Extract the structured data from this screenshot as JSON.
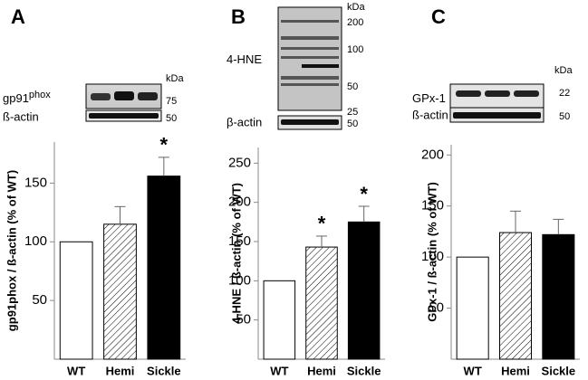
{
  "chart_data": [
    {
      "type": "bar",
      "panel": "A",
      "ylabel": "gp91phox / ß-actin (% of WT)",
      "categories": [
        "WT",
        "Hemi",
        "Sickle"
      ],
      "values": [
        100,
        115,
        156
      ],
      "errors": [
        0,
        15,
        16
      ],
      "fills": [
        "#ffffff",
        "#ffffff",
        "#000000"
      ],
      "hatch": [
        false,
        true,
        false
      ],
      "significance": [
        null,
        null,
        "*"
      ],
      "ylim": [
        0,
        185
      ],
      "yticks": [
        50,
        100,
        150
      ],
      "blot": {
        "unit": "kDa",
        "protein": "gp91",
        "protein_sup": "phox",
        "loading": "ß-actin",
        "markers": [
          "75",
          "50"
        ]
      }
    },
    {
      "type": "bar",
      "panel": "B",
      "ylabel": "4-HNE / ß-actin (% of WT)",
      "categories": [
        "WT",
        "Hemi",
        "Sickle"
      ],
      "values": [
        100,
        143,
        175
      ],
      "errors": [
        0,
        14,
        20
      ],
      "fills": [
        "#ffffff",
        "#ffffff",
        "#000000"
      ],
      "hatch": [
        false,
        true,
        false
      ],
      "significance": [
        null,
        "*",
        "*"
      ],
      "ylim": [
        0,
        270
      ],
      "yticks": [
        50,
        100,
        150,
        200,
        250
      ],
      "blot": {
        "unit": "kDa",
        "protein": "4-HNE",
        "loading": "β-actin",
        "markers": [
          "200",
          "100",
          "50",
          "25",
          "50"
        ]
      }
    },
    {
      "type": "bar",
      "panel": "C",
      "ylabel": "GPx-1 / ß-actin (% of WT)",
      "categories": [
        "WT",
        "Hemi",
        "Sickle"
      ],
      "values": [
        100,
        124,
        122
      ],
      "errors": [
        0,
        21,
        15
      ],
      "fills": [
        "#ffffff",
        "#ffffff",
        "#000000"
      ],
      "hatch": [
        false,
        true,
        false
      ],
      "significance": [
        null,
        null,
        null
      ],
      "ylim": [
        0,
        210
      ],
      "yticks": [
        50,
        100,
        150,
        200
      ],
      "blot": {
        "unit": "kDa",
        "protein": "GPx-1",
        "loading": "ß-actin",
        "markers": [
          "22",
          "50"
        ]
      }
    }
  ]
}
